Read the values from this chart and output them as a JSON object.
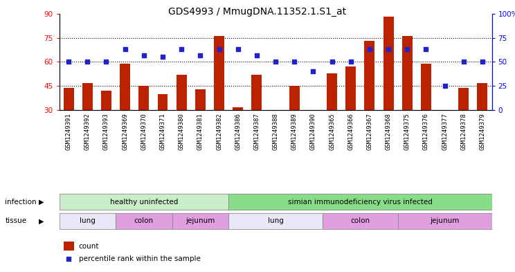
{
  "title": "GDS4993 / MmugDNA.11352.1.S1_at",
  "samples": [
    "GSM1249391",
    "GSM1249392",
    "GSM1249393",
    "GSM1249369",
    "GSM1249370",
    "GSM1249371",
    "GSM1249380",
    "GSM1249381",
    "GSM1249382",
    "GSM1249386",
    "GSM1249387",
    "GSM1249388",
    "GSM1249389",
    "GSM1249390",
    "GSM1249365",
    "GSM1249366",
    "GSM1249367",
    "GSM1249368",
    "GSM1249375",
    "GSM1249376",
    "GSM1249377",
    "GSM1249378",
    "GSM1249379"
  ],
  "counts": [
    44,
    47,
    42,
    59,
    45,
    40,
    52,
    43,
    76,
    32,
    52,
    30,
    45,
    30,
    53,
    57,
    73,
    88,
    76,
    59,
    30,
    44,
    47
  ],
  "percentiles": [
    50,
    50,
    50,
    63,
    57,
    55,
    63,
    57,
    63,
    63,
    57,
    50,
    50,
    40,
    50,
    50,
    63,
    63,
    63,
    63,
    25,
    50,
    50
  ],
  "bar_color": "#bb2200",
  "dot_color": "#2222cc",
  "ylim_left": [
    30,
    90
  ],
  "ylim_right": [
    0,
    100
  ],
  "yticks_left": [
    30,
    45,
    60,
    75,
    90
  ],
  "yticks_right": [
    0,
    25,
    50,
    75,
    100
  ],
  "yticklabels_right": [
    "0",
    "25",
    "50",
    "75",
    "100%"
  ],
  "grid_values": [
    45,
    60,
    75
  ],
  "infection_groups": [
    {
      "label": "healthy uninfected",
      "start": 0,
      "end": 9,
      "color": "#c8edc8"
    },
    {
      "label": "simian immunodeficiency virus infected",
      "start": 9,
      "end": 23,
      "color": "#88dd88"
    }
  ],
  "tissue_groups": [
    {
      "label": "lung",
      "start": 0,
      "end": 3,
      "color": "#e8e8f8"
    },
    {
      "label": "colon",
      "start": 3,
      "end": 6,
      "color": "#e0a0e0"
    },
    {
      "label": "jejunum",
      "start": 6,
      "end": 9,
      "color": "#e0a0e0"
    },
    {
      "label": "lung",
      "start": 9,
      "end": 14,
      "color": "#e8e8f8"
    },
    {
      "label": "colon",
      "start": 14,
      "end": 18,
      "color": "#e0a0e0"
    },
    {
      "label": "jejunum",
      "start": 18,
      "end": 23,
      "color": "#e0a0e0"
    }
  ],
  "infection_label": "infection",
  "tissue_label": "tissue",
  "legend_count_label": "count",
  "legend_percentile_label": "percentile rank within the sample",
  "title_fontsize": 10,
  "tick_fontsize": 6.5,
  "label_fontsize": 7.5,
  "bar_width": 0.55
}
